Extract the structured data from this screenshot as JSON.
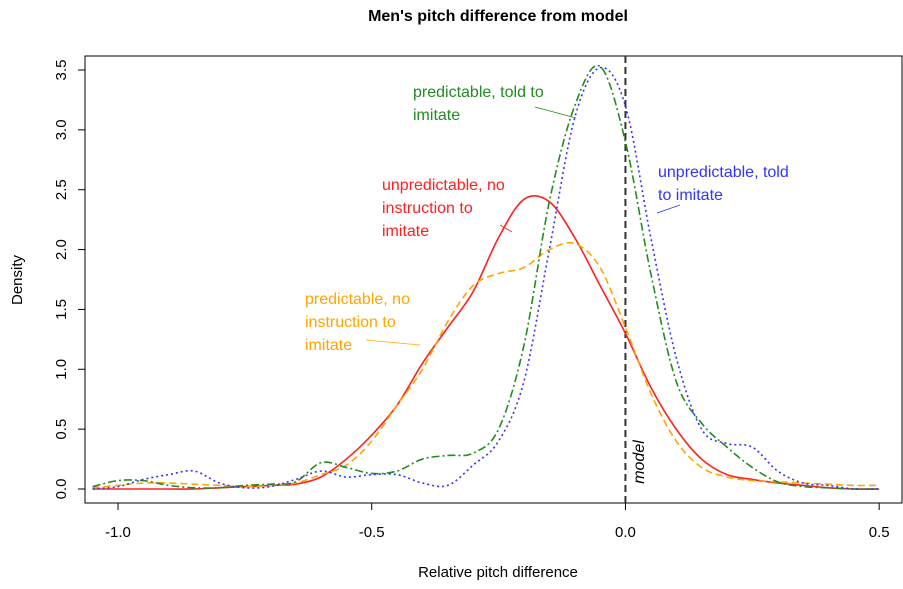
{
  "chart_data": {
    "type": "line",
    "title": "Men's pitch difference from model",
    "xlabel": "Relative pitch difference",
    "ylabel": "Density",
    "xlim": [
      -1.065,
      0.545
    ],
    "ylim": [
      -0.117,
      3.617
    ],
    "xticks": [
      {
        "value": -1,
        "label": "-1.0"
      },
      -0.5,
      {
        "value": 0,
        "label": "0.0"
      },
      0.5
    ],
    "yticks": [
      {
        "value": 0,
        "label": "0.0"
      },
      0.5,
      {
        "value": 1,
        "label": "1.0"
      },
      1.5,
      {
        "value": 2,
        "label": "2.0"
      },
      2.5,
      {
        "value": 3,
        "label": "3.0"
      },
      3.5
    ],
    "reference_line": {
      "x": 0,
      "label": "model",
      "color": "#333333"
    },
    "x": [
      -1.05,
      -1,
      -0.95,
      -0.9,
      -0.85,
      -0.8,
      -0.75,
      -0.7,
      -0.65,
      -0.6,
      -0.55,
      -0.5,
      -0.45,
      -0.4,
      -0.35,
      -0.3,
      -0.25,
      -0.2,
      -0.15,
      -0.1,
      -0.05,
      0,
      0.05,
      0.1,
      0.15,
      0.2,
      0.25,
      0.3,
      0.35,
      0.4,
      0.45,
      0.5
    ],
    "series": [
      {
        "label": [
          "unpredictable, no",
          "instruction to",
          "imitate"
        ],
        "color": "#ff2020",
        "dash": "solid",
        "values": [
          0,
          0,
          0,
          0,
          0,
          0.01,
          0.02,
          0.03,
          0.04,
          0.1,
          0.25,
          0.45,
          0.7,
          1.05,
          1.35,
          1.65,
          2.1,
          2.42,
          2.4,
          2.1,
          1.7,
          1.3,
          0.85,
          0.5,
          0.25,
          0.12,
          0.08,
          0.05,
          0.03,
          0.01,
          0,
          0
        ]
      },
      {
        "label": [
          "predictable, no",
          "instruction to",
          "imitate"
        ],
        "color": "#ffa500",
        "dash": "dashed",
        "values": [
          0.01,
          0.03,
          0.05,
          0.05,
          0.04,
          0.03,
          0.02,
          0.03,
          0.05,
          0.12,
          0.2,
          0.4,
          0.7,
          1.0,
          1.4,
          1.7,
          1.8,
          1.85,
          2.0,
          2.05,
          1.85,
          1.35,
          0.8,
          0.4,
          0.18,
          0.1,
          0.07,
          0.06,
          0.05,
          0.04,
          0.03,
          0.03
        ]
      },
      {
        "label": [
          "predictable, told to",
          "imitate"
        ],
        "color": "#228b22",
        "dash": "dashdot",
        "values": [
          0.02,
          0.07,
          0.07,
          0.03,
          0.01,
          0.01,
          0.03,
          0.04,
          0.06,
          0.22,
          0.18,
          0.13,
          0.15,
          0.25,
          0.28,
          0.3,
          0.5,
          1.2,
          2.4,
          3.2,
          3.53,
          2.9,
          1.8,
          0.9,
          0.55,
          0.35,
          0.18,
          0.06,
          0.02,
          0.01,
          0,
          0
        ]
      },
      {
        "label": [
          "unpredictable, told",
          "to imitate"
        ],
        "color": "#3333ff",
        "dash": "dotted",
        "values": [
          0,
          0.02,
          0.08,
          0.12,
          0.15,
          0.05,
          0.01,
          0.02,
          0.08,
          0.15,
          0.1,
          0.12,
          0.12,
          0.05,
          0.03,
          0.2,
          0.4,
          0.9,
          2.0,
          3.1,
          3.52,
          3.2,
          2.1,
          1.1,
          0.5,
          0.38,
          0.35,
          0.15,
          0.05,
          0.03,
          0,
          0
        ]
      }
    ]
  }
}
